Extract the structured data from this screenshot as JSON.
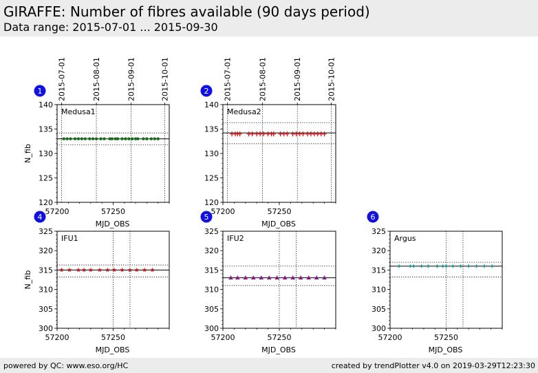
{
  "header": {
    "title": "GIRAFFE: Number of fibres available (90 days period)",
    "subtitle": "Data range: 2015-07-01 ... 2015-09-30"
  },
  "footer": {
    "left": "powered by QC: www.eso.org/HC",
    "right": "created by trendPlotter v4.0 on 2019-03-29T12:23:30"
  },
  "colors": {
    "header_bg": "#ececec",
    "badge": "#1010e0",
    "medusa1": "#1a6b1a",
    "medusa2": "#dd1111",
    "ifu1": "#cc1111",
    "ifu2": "#8b1a8b",
    "argus": "#1a9a9a"
  },
  "chart_data": [
    {
      "type": "scatter",
      "badge": "1",
      "label": "Medusa1",
      "xlabel": "MJD_OBS",
      "ylabel": "N_fib",
      "xlim": [
        57200,
        57300
      ],
      "ylim": [
        120,
        140
      ],
      "xticks": [
        57200,
        57250
      ],
      "yticks": [
        120,
        125,
        130,
        135,
        140
      ],
      "date_ticks": [
        "2015-07-01",
        "2015-08-01",
        "2015-09-01",
        "2015-10-01"
      ],
      "date_tick_mjd": [
        57204,
        57235,
        57266,
        57296
      ],
      "ref_line": 133,
      "ref_band": [
        131.8,
        134.2
      ],
      "marker": "dot",
      "color": "#1a6b1a",
      "x": [
        57206,
        57209,
        57212,
        57216,
        57219,
        57222,
        57225,
        57229,
        57232,
        57235,
        57239,
        57242,
        57247,
        57249,
        57252,
        57254,
        57258,
        57261,
        57264,
        57267,
        57270,
        57272,
        57277,
        57280,
        57284,
        57287,
        57290
      ],
      "y": [
        133,
        133,
        133,
        133,
        133,
        133,
        133,
        133,
        133,
        133,
        133,
        133,
        133,
        133,
        133,
        133,
        133,
        133,
        133,
        133,
        133,
        133,
        133,
        133,
        133,
        133,
        133
      ]
    },
    {
      "type": "scatter",
      "badge": "2",
      "label": "Medusa2",
      "xlabel": "MJD_OBS",
      "ylabel": "",
      "xlim": [
        57200,
        57300
      ],
      "ylim": [
        120,
        140
      ],
      "xticks": [
        57200,
        57250
      ],
      "yticks": [
        120,
        125,
        130,
        135,
        140
      ],
      "date_ticks": [
        "2015-07-01",
        "2015-08-01",
        "2015-09-01",
        "2015-10-01"
      ],
      "date_tick_mjd": [
        57204,
        57235,
        57266,
        57296
      ],
      "ref_line": 134.2,
      "ref_band": [
        132,
        136.3
      ],
      "marker": "plus",
      "color": "#dd1111",
      "x": [
        57208,
        57211,
        57213,
        57215,
        57223,
        57226,
        57230,
        57233,
        57236,
        57240,
        57243,
        57245,
        57251,
        57254,
        57257,
        57262,
        57265,
        57268,
        57271,
        57275,
        57278,
        57281,
        57284,
        57287,
        57290
      ],
      "y": [
        134,
        134,
        134,
        134,
        134,
        134,
        134,
        134,
        134,
        134,
        134,
        134,
        134,
        134,
        134,
        134,
        134,
        134,
        134,
        134,
        134,
        134,
        134,
        134,
        134
      ]
    },
    {
      "type": "scatter",
      "badge": "4",
      "label": "IFU1",
      "xlabel": "MJD_OBS",
      "ylabel": "N_fib",
      "xlim": [
        57200,
        57300
      ],
      "ylim": [
        300,
        325
      ],
      "xticks": [
        57200,
        57250
      ],
      "yticks": [
        300,
        305,
        310,
        315,
        320,
        325
      ],
      "ref_line": 315,
      "ref_band": [
        313.2,
        316.3
      ],
      "marker": "star",
      "color": "#cc1111",
      "x": [
        57204,
        57211,
        57219,
        57224,
        57230,
        57238,
        57245,
        57251,
        57258,
        57265,
        57271,
        57278,
        57285
      ],
      "y": [
        315,
        315,
        315,
        315,
        315,
        315,
        315,
        315,
        315,
        315,
        315,
        315,
        315
      ]
    },
    {
      "type": "scatter",
      "badge": "5",
      "label": "IFU2",
      "xlabel": "MJD_OBS",
      "ylabel": "",
      "xlim": [
        57200,
        57300
      ],
      "ylim": [
        300,
        325
      ],
      "xticks": [
        57200,
        57250
      ],
      "yticks": [
        300,
        305,
        310,
        315,
        320,
        325
      ],
      "ref_line": 313,
      "ref_band": [
        311,
        316
      ],
      "marker": "triangle",
      "color": "#8b1a8b",
      "x": [
        57207,
        57213,
        57220,
        57227,
        57234,
        57241,
        57248,
        57255,
        57262,
        57269,
        57276,
        57283,
        57290
      ],
      "y": [
        313,
        313,
        313,
        313,
        313,
        313,
        313,
        313,
        313,
        313,
        313,
        313,
        313
      ]
    },
    {
      "type": "scatter",
      "badge": "6",
      "label": "Argus",
      "xlabel": "MJD_OBS",
      "ylabel": "",
      "xlim": [
        57200,
        57300
      ],
      "ylim": [
        300,
        325
      ],
      "xticks": [
        57200,
        57250
      ],
      "yticks": [
        300,
        305,
        310,
        315,
        320,
        325
      ],
      "ref_line": 316,
      "ref_band": [
        313.2,
        317
      ],
      "marker": "diamond",
      "color": "#1a9a9a",
      "x": [
        57208,
        57218,
        57221,
        57228,
        57234,
        57242,
        57247,
        57250,
        57256,
        57263,
        57270,
        57277,
        57284,
        57291
      ],
      "y": [
        316,
        316,
        316,
        316,
        316,
        316,
        316,
        316,
        316,
        316,
        316,
        316,
        316,
        316
      ]
    }
  ]
}
